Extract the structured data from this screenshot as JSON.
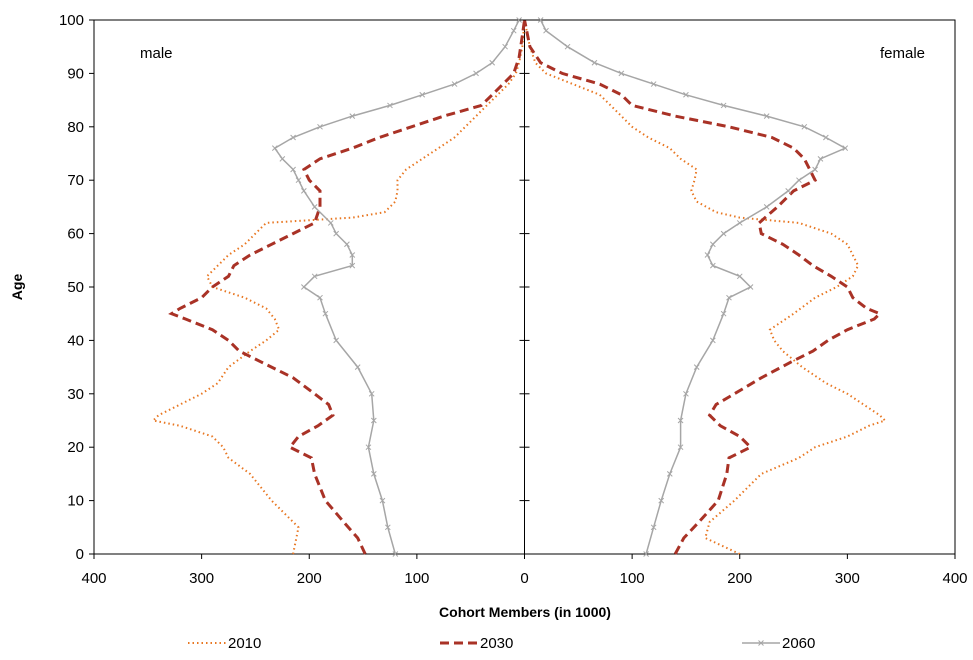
{
  "chart_data": {
    "type": "line",
    "title": "",
    "xlabel": "Cohort Members (in 1000)",
    "ylabel": "Age",
    "xlim": [
      -400,
      400
    ],
    "ylim": [
      0,
      100
    ],
    "x_tick_values": [
      -400,
      -300,
      -200,
      -100,
      0,
      100,
      200,
      300,
      400
    ],
    "x_tick_labels": [
      "400",
      "300",
      "200",
      "100",
      "0",
      "100",
      "200",
      "300",
      "400"
    ],
    "y_ticks": [
      0,
      10,
      20,
      30,
      40,
      50,
      60,
      70,
      80,
      90,
      100
    ],
    "grid": false,
    "legend_position": "bottom",
    "annotations": {
      "left": "male",
      "right": "female"
    },
    "series": [
      {
        "name": "2010",
        "color": "#E87722",
        "style": "dotted",
        "male": [
          [
            0,
            215
          ],
          [
            5,
            210
          ],
          [
            10,
            235
          ],
          [
            15,
            255
          ],
          [
            18,
            275
          ],
          [
            20,
            280
          ],
          [
            22,
            290
          ],
          [
            24,
            320
          ],
          [
            25,
            345
          ],
          [
            26,
            340
          ],
          [
            28,
            320
          ],
          [
            30,
            300
          ],
          [
            32,
            285
          ],
          [
            35,
            275
          ],
          [
            38,
            255
          ],
          [
            40,
            240
          ],
          [
            42,
            228
          ],
          [
            44,
            232
          ],
          [
            46,
            240
          ],
          [
            48,
            260
          ],
          [
            50,
            290
          ],
          [
            52,
            295
          ],
          [
            54,
            285
          ],
          [
            56,
            275
          ],
          [
            58,
            260
          ],
          [
            60,
            250
          ],
          [
            62,
            240
          ],
          [
            63,
            160
          ],
          [
            64,
            130
          ],
          [
            66,
            120
          ],
          [
            68,
            118
          ],
          [
            70,
            118
          ],
          [
            72,
            110
          ],
          [
            74,
            95
          ],
          [
            76,
            80
          ],
          [
            78,
            65
          ],
          [
            80,
            55
          ],
          [
            82,
            45
          ],
          [
            84,
            35
          ],
          [
            86,
            25
          ],
          [
            88,
            15
          ],
          [
            90,
            8
          ],
          [
            92,
            5
          ],
          [
            95,
            2
          ],
          [
            100,
            0
          ]
        ],
        "female": [
          [
            0,
            200
          ],
          [
            3,
            168
          ],
          [
            6,
            172
          ],
          [
            10,
            195
          ],
          [
            15,
            220
          ],
          [
            18,
            255
          ],
          [
            20,
            270
          ],
          [
            22,
            300
          ],
          [
            24,
            320
          ],
          [
            25,
            335
          ],
          [
            26,
            330
          ],
          [
            28,
            315
          ],
          [
            30,
            300
          ],
          [
            32,
            280
          ],
          [
            35,
            258
          ],
          [
            38,
            240
          ],
          [
            40,
            232
          ],
          [
            42,
            228
          ],
          [
            45,
            250
          ],
          [
            48,
            270
          ],
          [
            50,
            290
          ],
          [
            52,
            305
          ],
          [
            54,
            310
          ],
          [
            56,
            305
          ],
          [
            58,
            300
          ],
          [
            60,
            285
          ],
          [
            62,
            255
          ],
          [
            63,
            200
          ],
          [
            64,
            178
          ],
          [
            66,
            160
          ],
          [
            68,
            155
          ],
          [
            70,
            158
          ],
          [
            72,
            160
          ],
          [
            74,
            145
          ],
          [
            76,
            135
          ],
          [
            78,
            115
          ],
          [
            80,
            100
          ],
          [
            82,
            90
          ],
          [
            84,
            80
          ],
          [
            86,
            70
          ],
          [
            88,
            45
          ],
          [
            90,
            20
          ],
          [
            92,
            10
          ],
          [
            95,
            5
          ],
          [
            100,
            0
          ]
        ]
      },
      {
        "name": "2030",
        "color": "#A93226",
        "style": "dashed",
        "male": [
          [
            0,
            148
          ],
          [
            3,
            155
          ],
          [
            6,
            168
          ],
          [
            10,
            185
          ],
          [
            15,
            195
          ],
          [
            18,
            198
          ],
          [
            20,
            218
          ],
          [
            22,
            210
          ],
          [
            24,
            192
          ],
          [
            26,
            178
          ],
          [
            28,
            182
          ],
          [
            30,
            195
          ],
          [
            33,
            215
          ],
          [
            36,
            245
          ],
          [
            38,
            265
          ],
          [
            40,
            275
          ],
          [
            42,
            290
          ],
          [
            44,
            315
          ],
          [
            45,
            328
          ],
          [
            46,
            320
          ],
          [
            48,
            300
          ],
          [
            50,
            290
          ],
          [
            52,
            275
          ],
          [
            54,
            270
          ],
          [
            56,
            255
          ],
          [
            58,
            235
          ],
          [
            60,
            215
          ],
          [
            62,
            195
          ],
          [
            65,
            190
          ],
          [
            68,
            190
          ],
          [
            70,
            200
          ],
          [
            72,
            205
          ],
          [
            74,
            190
          ],
          [
            76,
            160
          ],
          [
            78,
            135
          ],
          [
            80,
            105
          ],
          [
            82,
            75
          ],
          [
            84,
            40
          ],
          [
            86,
            30
          ],
          [
            88,
            20
          ],
          [
            90,
            10
          ],
          [
            93,
            5
          ],
          [
            97,
            2
          ],
          [
            100,
            0
          ]
        ],
        "female": [
          [
            0,
            140
          ],
          [
            3,
            148
          ],
          [
            6,
            162
          ],
          [
            10,
            180
          ],
          [
            15,
            188
          ],
          [
            18,
            190
          ],
          [
            20,
            210
          ],
          [
            22,
            200
          ],
          [
            24,
            182
          ],
          [
            26,
            172
          ],
          [
            28,
            178
          ],
          [
            30,
            195
          ],
          [
            33,
            220
          ],
          [
            36,
            248
          ],
          [
            38,
            268
          ],
          [
            40,
            282
          ],
          [
            42,
            300
          ],
          [
            44,
            325
          ],
          [
            45,
            330
          ],
          [
            46,
            318
          ],
          [
            48,
            305
          ],
          [
            50,
            300
          ],
          [
            52,
            285
          ],
          [
            54,
            268
          ],
          [
            56,
            255
          ],
          [
            58,
            240
          ],
          [
            60,
            220
          ],
          [
            62,
            218
          ],
          [
            65,
            235
          ],
          [
            68,
            250
          ],
          [
            70,
            270
          ],
          [
            72,
            265
          ],
          [
            74,
            260
          ],
          [
            76,
            250
          ],
          [
            78,
            230
          ],
          [
            80,
            190
          ],
          [
            82,
            140
          ],
          [
            84,
            100
          ],
          [
            86,
            90
          ],
          [
            88,
            70
          ],
          [
            90,
            35
          ],
          [
            92,
            15
          ],
          [
            95,
            5
          ],
          [
            100,
            0
          ]
        ]
      },
      {
        "name": "2060",
        "color": "#A6A6A6",
        "style": "solid-markers",
        "male": [
          [
            0,
            120
          ],
          [
            5,
            127
          ],
          [
            10,
            132
          ],
          [
            15,
            140
          ],
          [
            20,
            145
          ],
          [
            25,
            140
          ],
          [
            30,
            142
          ],
          [
            35,
            155
          ],
          [
            40,
            175
          ],
          [
            45,
            185
          ],
          [
            48,
            190
          ],
          [
            50,
            205
          ],
          [
            52,
            195
          ],
          [
            54,
            160
          ],
          [
            56,
            160
          ],
          [
            58,
            165
          ],
          [
            60,
            175
          ],
          [
            62,
            180
          ],
          [
            65,
            195
          ],
          [
            68,
            205
          ],
          [
            70,
            210
          ],
          [
            72,
            215
          ],
          [
            74,
            225
          ],
          [
            76,
            232
          ],
          [
            78,
            215
          ],
          [
            80,
            190
          ],
          [
            82,
            160
          ],
          [
            84,
            125
          ],
          [
            86,
            95
          ],
          [
            88,
            65
          ],
          [
            90,
            45
          ],
          [
            92,
            30
          ],
          [
            95,
            18
          ],
          [
            98,
            10
          ],
          [
            100,
            5
          ]
        ],
        "female": [
          [
            0,
            113
          ],
          [
            5,
            120
          ],
          [
            10,
            127
          ],
          [
            15,
            135
          ],
          [
            20,
            145
          ],
          [
            25,
            145
          ],
          [
            30,
            150
          ],
          [
            35,
            160
          ],
          [
            40,
            175
          ],
          [
            45,
            185
          ],
          [
            48,
            190
          ],
          [
            50,
            210
          ],
          [
            52,
            200
          ],
          [
            54,
            175
          ],
          [
            56,
            170
          ],
          [
            58,
            175
          ],
          [
            60,
            185
          ],
          [
            62,
            200
          ],
          [
            65,
            225
          ],
          [
            68,
            245
          ],
          [
            70,
            255
          ],
          [
            72,
            270
          ],
          [
            74,
            275
          ],
          [
            76,
            298
          ],
          [
            78,
            280
          ],
          [
            80,
            260
          ],
          [
            82,
            225
          ],
          [
            84,
            185
          ],
          [
            86,
            150
          ],
          [
            88,
            120
          ],
          [
            90,
            90
          ],
          [
            92,
            65
          ],
          [
            95,
            40
          ],
          [
            98,
            20
          ],
          [
            100,
            15
          ]
        ]
      }
    ]
  }
}
